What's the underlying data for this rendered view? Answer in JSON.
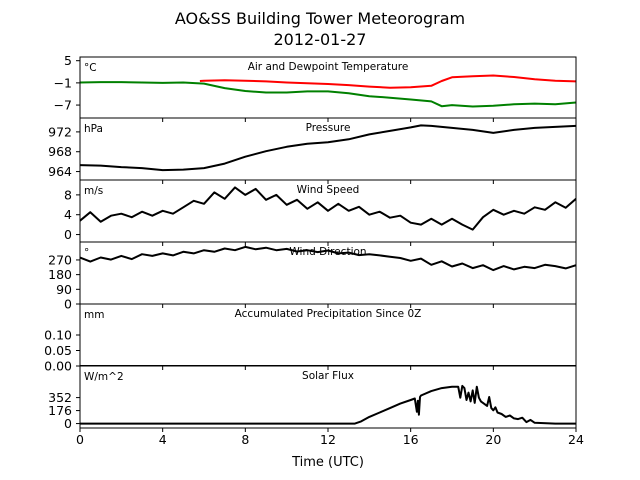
{
  "title": "AO&SS Building Tower Meteorogram",
  "subtitle": "2012-01-27",
  "xlabel": "Time (UTC)",
  "x_ticks": [
    "0",
    "4",
    "8",
    "12",
    "16",
    "20",
    "24"
  ],
  "colors": {
    "temperature": "#ff0000",
    "dewpoint": "#008000",
    "black": "#000000"
  },
  "chart_data": [
    {
      "type": "line",
      "title": "Air and Dewpoint Temperature",
      "unit": "°C",
      "ylim": [
        -10.5,
        6
      ],
      "yticks": [
        "5",
        "−1",
        "−7"
      ],
      "x": [
        0,
        1,
        2,
        3,
        4,
        5,
        5.8,
        6,
        7,
        8,
        9,
        10,
        11,
        12,
        13,
        14,
        15,
        16,
        17,
        18,
        19,
        20,
        21,
        22,
        23,
        24
      ],
      "series": [
        {
          "color": "#ff0000",
          "x": [
            5.8,
            6,
            7,
            8,
            9,
            10,
            11,
            12,
            13,
            14,
            15,
            16,
            17,
            17.5,
            18,
            19,
            20,
            21,
            22,
            23,
            24
          ],
          "values": [
            -0.5,
            -0.4,
            -0.3,
            -0.4,
            -0.6,
            -0.9,
            -1.1,
            -1.3,
            -1.6,
            -2.0,
            -2.3,
            -2.2,
            -1.8,
            -0.5,
            0.5,
            0.8,
            1.0,
            0.6,
            0.0,
            -0.4,
            -0.6
          ]
        },
        {
          "color": "#008000",
          "x": [
            0,
            1,
            2,
            3,
            4,
            5,
            6,
            7,
            8,
            9,
            10,
            11,
            12,
            13,
            14,
            15,
            16,
            17,
            17.5,
            18,
            19,
            20,
            21,
            22,
            23,
            24
          ],
          "values": [
            -0.9,
            -0.8,
            -0.8,
            -0.9,
            -1.0,
            -0.9,
            -1.2,
            -2.4,
            -3.2,
            -3.6,
            -3.6,
            -3.3,
            -3.3,
            -3.8,
            -4.6,
            -5.0,
            -5.5,
            -6.0,
            -7.3,
            -7.0,
            -7.4,
            -7.2,
            -6.8,
            -6.6,
            -6.8,
            -6.3
          ]
        }
      ]
    },
    {
      "type": "line",
      "title": "Pressure",
      "unit": "hPa",
      "ylim": [
        962.3,
        974.8
      ],
      "yticks": [
        "972",
        "968",
        "964"
      ],
      "series": [
        {
          "color": "#000000",
          "x": [
            0,
            1,
            2,
            3,
            4,
            5,
            6,
            7,
            8,
            9,
            10,
            11,
            12,
            13,
            14,
            15,
            16,
            16.5,
            17,
            18,
            19,
            20,
            21,
            22,
            23,
            24
          ],
          "values": [
            965.3,
            965.2,
            964.9,
            964.7,
            964.3,
            964.4,
            964.7,
            965.6,
            967.0,
            968.1,
            969.0,
            969.6,
            969.9,
            970.5,
            971.5,
            972.2,
            972.9,
            973.3,
            973.2,
            972.8,
            972.4,
            971.8,
            972.4,
            972.8,
            973.0,
            973.2
          ]
        }
      ]
    },
    {
      "type": "line",
      "title": "Wind Speed",
      "unit": "m/s",
      "ylim": [
        -1.5,
        11
      ],
      "yticks": [
        "8",
        "4",
        "0"
      ],
      "series": [
        {
          "color": "#000000",
          "x": [
            0,
            0.5,
            1,
            1.5,
            2,
            2.5,
            3,
            3.5,
            4,
            4.5,
            5,
            5.5,
            6,
            6.5,
            7,
            7.5,
            8,
            8.5,
            9,
            9.5,
            10,
            10.5,
            11,
            11.5,
            12,
            12.5,
            13,
            13.5,
            14,
            14.5,
            15,
            15.5,
            16,
            16.5,
            17,
            17.5,
            18,
            18.5,
            19,
            19.5,
            20,
            20.5,
            21,
            21.5,
            22,
            22.5,
            23,
            23.5,
            24
          ],
          "values": [
            2.8,
            4.5,
            2.6,
            3.8,
            4.2,
            3.5,
            4.6,
            3.8,
            4.8,
            4.2,
            5.5,
            6.8,
            6.2,
            8.5,
            7.2,
            9.5,
            8.0,
            9.2,
            7.0,
            8.0,
            6.0,
            7.0,
            5.2,
            6.5,
            4.8,
            6.2,
            4.8,
            5.6,
            4.0,
            4.6,
            3.4,
            3.8,
            2.4,
            2.0,
            3.2,
            2.0,
            3.2,
            2.0,
            1.0,
            3.5,
            5.0,
            4.0,
            4.8,
            4.2,
            5.5,
            5.0,
            6.5,
            5.4,
            7.2
          ]
        }
      ]
    },
    {
      "type": "line",
      "title": "Wind Direction",
      "unit": "°",
      "ylim": [
        0,
        380
      ],
      "yticks": [
        "270",
        "180",
        "90",
        "0"
      ],
      "series": [
        {
          "color": "#000000",
          "x": [
            0,
            0.5,
            1,
            1.5,
            2,
            2.5,
            3,
            3.5,
            4,
            4.5,
            5,
            5.5,
            6,
            6.5,
            7,
            7.5,
            8,
            8.5,
            9,
            9.5,
            10,
            10.5,
            11,
            11.5,
            12,
            12.5,
            13,
            13.5,
            14,
            14.5,
            15,
            15.5,
            16,
            16.5,
            17,
            17.5,
            18,
            18.5,
            19,
            19.5,
            20,
            20.5,
            21,
            21.5,
            22,
            22.5,
            23,
            23.5,
            24
          ],
          "values": [
            285,
            260,
            285,
            272,
            295,
            275,
            305,
            295,
            310,
            298,
            320,
            310,
            330,
            320,
            340,
            330,
            350,
            335,
            345,
            330,
            338,
            322,
            330,
            318,
            328,
            310,
            315,
            300,
            305,
            298,
            290,
            282,
            265,
            278,
            240,
            262,
            230,
            248,
            220,
            238,
            208,
            232,
            212,
            228,
            220,
            240,
            232,
            218,
            238
          ]
        }
      ]
    },
    {
      "type": "line",
      "title": "Accumulated Precipitation Since 0Z",
      "unit": "mm",
      "ylim": [
        0,
        0.2
      ],
      "yticks": [
        "0.10",
        "0.05",
        "0.00"
      ],
      "series": [
        {
          "color": "#000000",
          "x": [
            0,
            24
          ],
          "values": [
            0,
            0
          ]
        }
      ]
    },
    {
      "type": "line",
      "title": "Solar Flux",
      "unit": "W/m^2",
      "ylim": [
        -60,
        780
      ],
      "yticks": [
        "352",
        "176",
        "0"
      ],
      "series": [
        {
          "color": "#000000",
          "x": [
            0,
            13.3,
            13.6,
            14,
            14.5,
            15,
            15.5,
            16,
            16.2,
            16.3,
            16.35,
            16.4,
            16.45,
            16.5,
            17,
            17.5,
            18,
            18.3,
            18.4,
            18.5,
            18.6,
            18.7,
            18.8,
            18.9,
            19,
            19.1,
            19.2,
            19.3,
            19.4,
            19.5,
            19.7,
            19.8,
            19.9,
            20,
            20.1,
            20.2,
            20.4,
            20.6,
            20.8,
            21,
            21.2,
            21.4,
            21.6,
            21.8,
            22,
            23,
            24
          ],
          "values": [
            0,
            0,
            30,
            90,
            150,
            210,
            270,
            320,
            340,
            160,
            310,
            120,
            360,
            380,
            440,
            480,
            500,
            500,
            350,
            510,
            480,
            320,
            420,
            300,
            450,
            280,
            500,
            350,
            300,
            280,
            240,
            360,
            210,
            180,
            220,
            150,
            130,
            90,
            110,
            70,
            60,
            80,
            20,
            50,
            10,
            0,
            0
          ]
        }
      ]
    }
  ]
}
